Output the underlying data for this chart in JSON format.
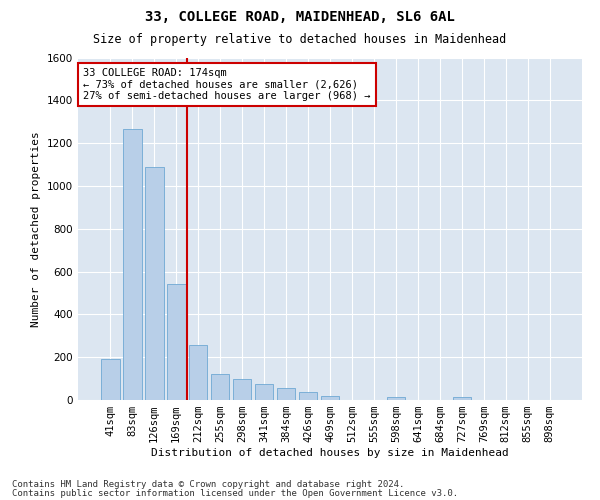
{
  "title1": "33, COLLEGE ROAD, MAIDENHEAD, SL6 6AL",
  "title2": "Size of property relative to detached houses in Maidenhead",
  "xlabel": "Distribution of detached houses by size in Maidenhead",
  "ylabel": "Number of detached properties",
  "categories": [
    "41sqm",
    "83sqm",
    "126sqm",
    "169sqm",
    "212sqm",
    "255sqm",
    "298sqm",
    "341sqm",
    "384sqm",
    "426sqm",
    "469sqm",
    "512sqm",
    "555sqm",
    "598sqm",
    "641sqm",
    "684sqm",
    "727sqm",
    "769sqm",
    "812sqm",
    "855sqm",
    "898sqm"
  ],
  "values": [
    190,
    1265,
    1090,
    540,
    255,
    120,
    100,
    75,
    55,
    38,
    20,
    0,
    0,
    15,
    0,
    0,
    15,
    0,
    0,
    0,
    0
  ],
  "bar_color": "#b8cfe8",
  "bar_edge_color": "#6fa8d4",
  "property_line_x": 3.5,
  "property_line_color": "#cc0000",
  "annotation_text": "33 COLLEGE ROAD: 174sqm\n← 73% of detached houses are smaller (2,626)\n27% of semi-detached houses are larger (968) →",
  "annotation_box_color": "#ffffff",
  "annotation_box_edge_color": "#cc0000",
  "ylim": [
    0,
    1600
  ],
  "yticks": [
    0,
    200,
    400,
    600,
    800,
    1000,
    1200,
    1400,
    1600
  ],
  "footer1": "Contains HM Land Registry data © Crown copyright and database right 2024.",
  "footer2": "Contains public sector information licensed under the Open Government Licence v3.0.",
  "fig_bg_color": "#ffffff",
  "plot_bg_color": "#dce6f1",
  "grid_color": "#ffffff",
  "title_fontsize": 10,
  "subtitle_fontsize": 8.5,
  "axis_label_fontsize": 8,
  "tick_fontsize": 7.5,
  "annotation_fontsize": 7.5,
  "footer_fontsize": 6.5
}
